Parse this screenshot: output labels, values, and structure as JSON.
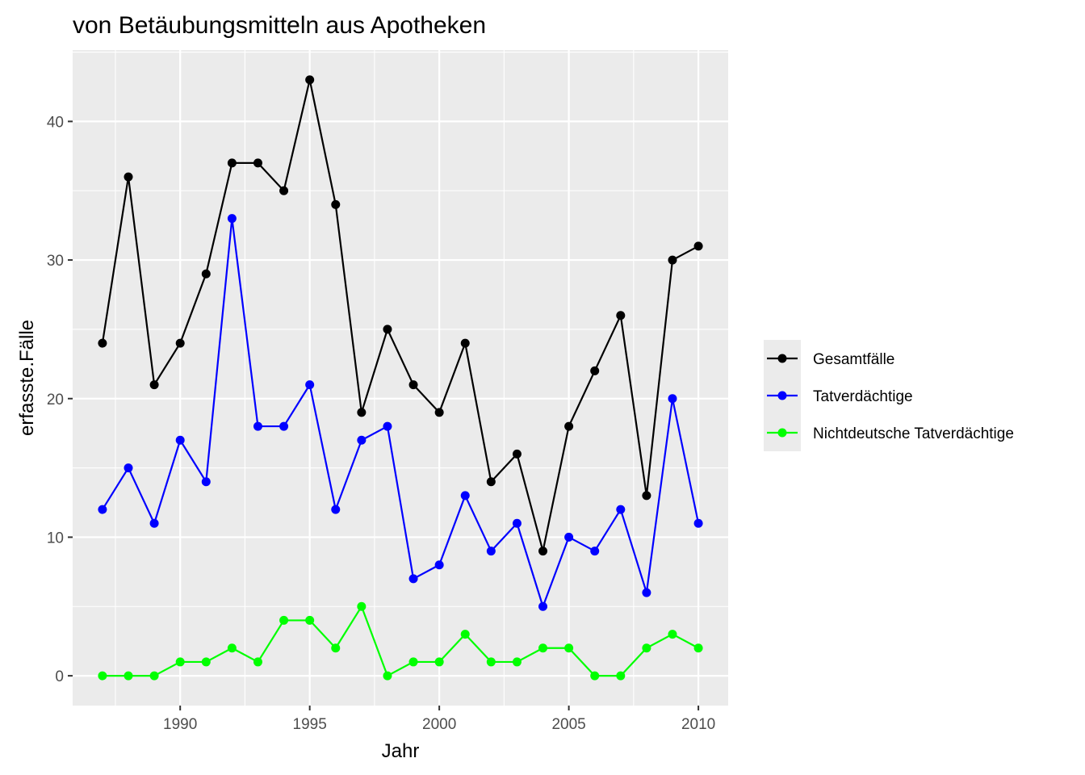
{
  "chart_data": {
    "type": "line",
    "title": "von Betäubungsmitteln aus Apotheken",
    "xlabel": "Jahr",
    "ylabel": "erfasste.Fälle",
    "xlim": [
      1985.85,
      2011.15
    ],
    "ylim": [
      -2.15,
      45.15
    ],
    "x_ticks": [
      1990,
      1995,
      2000,
      2005,
      2010
    ],
    "y_ticks": [
      0,
      10,
      20,
      30,
      40
    ],
    "grid": true,
    "legend_position": "right",
    "x": [
      1987,
      1988,
      1989,
      1990,
      1991,
      1992,
      1993,
      1994,
      1995,
      1996,
      1997,
      1998,
      1999,
      2000,
      2001,
      2002,
      2003,
      2004,
      2005,
      2006,
      2007,
      2008,
      2009,
      2010
    ],
    "series": [
      {
        "name": "Gesamtfälle",
        "color": "#000000",
        "values": [
          24,
          36,
          21,
          24,
          29,
          37,
          37,
          35,
          43,
          34,
          19,
          25,
          21,
          19,
          24,
          14,
          16,
          9,
          18,
          22,
          26,
          13,
          30,
          31
        ]
      },
      {
        "name": "Tatverdächtige",
        "color": "#0000ff",
        "values": [
          12,
          15,
          11,
          17,
          14,
          33,
          18,
          18,
          21,
          12,
          17,
          18,
          7,
          8,
          13,
          9,
          11,
          5,
          10,
          9,
          12,
          6,
          20,
          11
        ]
      },
      {
        "name": "Nichtdeutsche Tatverdächtige",
        "color": "#00ff00",
        "values": [
          0,
          0,
          0,
          1,
          1,
          2,
          1,
          4,
          4,
          2,
          5,
          0,
          1,
          1,
          3,
          1,
          1,
          2,
          2,
          0,
          0,
          2,
          3,
          2
        ]
      }
    ]
  }
}
